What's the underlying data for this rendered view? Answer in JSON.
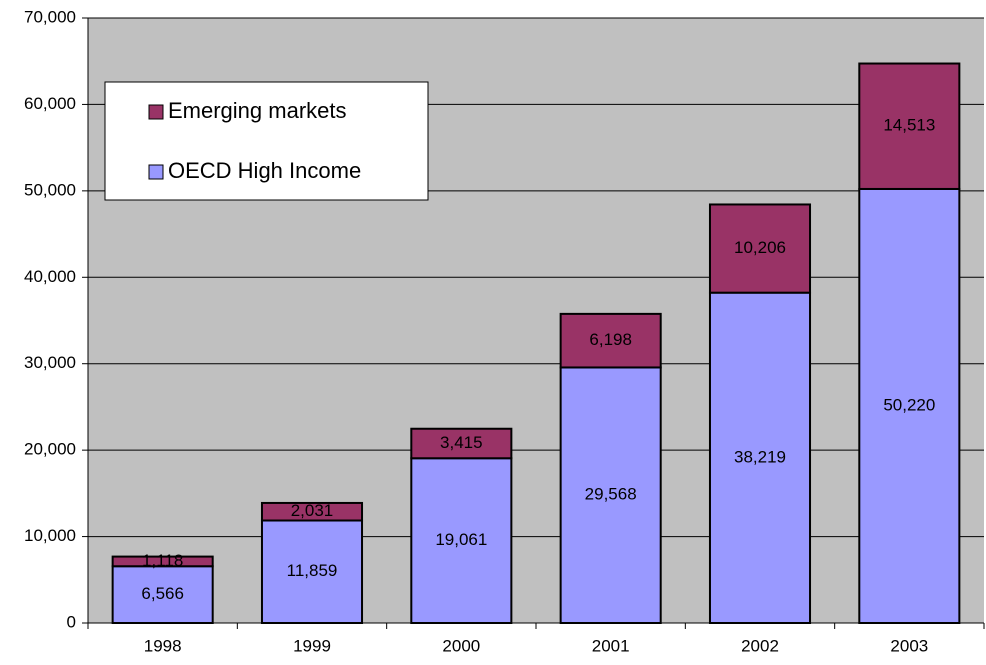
{
  "chart_data": {
    "type": "stacked_bar",
    "categories": [
      "1998",
      "1999",
      "2000",
      "2001",
      "2002",
      "2003"
    ],
    "series": [
      {
        "name": "OECD High Income",
        "color": "#9999ff",
        "values": [
          6566,
          11859,
          19061,
          29568,
          38219,
          50220
        ],
        "value_labels": [
          "6,566",
          "11,859",
          "19,061",
          "29,568",
          "38,219",
          "50,220"
        ]
      },
      {
        "name": "Emerging markets",
        "color": "#993366",
        "values": [
          1118,
          2031,
          3415,
          6198,
          10206,
          14513
        ],
        "value_labels": [
          "1,118",
          "2,031",
          "3,415",
          "6,198",
          "10,206",
          "14,513"
        ]
      }
    ],
    "ylim": [
      0,
      70000
    ],
    "yticks": [
      {
        "value": 0,
        "label": "0"
      },
      {
        "value": 10000,
        "label": "10,000"
      },
      {
        "value": 20000,
        "label": "20,000"
      },
      {
        "value": 30000,
        "label": "30,000"
      },
      {
        "value": 40000,
        "label": "40,000"
      },
      {
        "value": 50000,
        "label": "50,000"
      },
      {
        "value": 60000,
        "label": "60,000"
      },
      {
        "value": 70000,
        "label": "70,000"
      }
    ],
    "grid": true,
    "legend": "upper left"
  }
}
